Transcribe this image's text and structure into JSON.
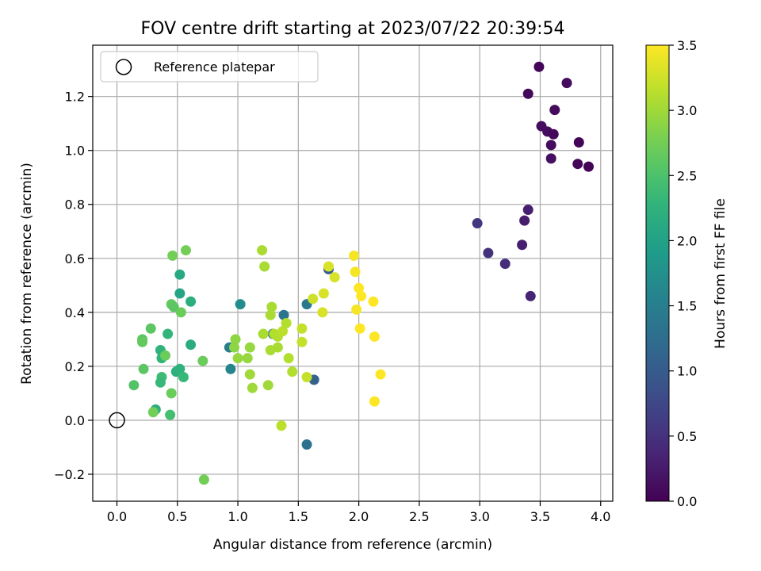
{
  "chart_data": {
    "type": "scatter",
    "title": "FOV centre drift starting at 2023/07/22 20:39:54",
    "xlabel": "Angular distance from reference (arcmin)",
    "ylabel": "Rotation from reference (arcmin)",
    "xlim": [
      -0.2,
      4.1
    ],
    "ylim": [
      -0.3,
      1.39
    ],
    "xticks": [
      0.0,
      0.5,
      1.0,
      1.5,
      2.0,
      2.5,
      3.0,
      3.5,
      4.0
    ],
    "xtick_labels": [
      "0.0",
      "0.5",
      "1.0",
      "1.5",
      "2.0",
      "2.5",
      "3.0",
      "3.5",
      "4.0"
    ],
    "yticks": [
      -0.2,
      0.0,
      0.2,
      0.4,
      0.6,
      0.8,
      1.0,
      1.2
    ],
    "ytick_labels": [
      "−0.2",
      "0.0",
      "0.2",
      "0.4",
      "0.6",
      "0.8",
      "1.0",
      "1.2"
    ],
    "grid": true,
    "legend": {
      "placement": "top-left",
      "entries": [
        "Reference platepar"
      ]
    },
    "reference_point": {
      "x": 0.0,
      "y": 0.0
    },
    "colorbar": {
      "label": "Hours from first FF file",
      "colormap": "viridis",
      "range": [
        0.0,
        3.5
      ],
      "ticks": [
        0.0,
        0.5,
        1.0,
        1.5,
        2.0,
        2.5,
        3.0,
        3.5
      ],
      "tick_labels": [
        "0.0",
        "0.5",
        "1.0",
        "1.5",
        "2.0",
        "2.5",
        "3.0",
        "3.5"
      ]
    },
    "points": [
      {
        "x": 3.49,
        "y": 1.31,
        "t": 0.05
      },
      {
        "x": 3.72,
        "y": 1.25,
        "t": 0.1
      },
      {
        "x": 3.4,
        "y": 1.21,
        "t": 0.08
      },
      {
        "x": 3.62,
        "y": 1.15,
        "t": 0.1
      },
      {
        "x": 3.51,
        "y": 1.09,
        "t": 0.12
      },
      {
        "x": 3.56,
        "y": 1.07,
        "t": 0.1
      },
      {
        "x": 3.61,
        "y": 1.06,
        "t": 0.08
      },
      {
        "x": 3.59,
        "y": 1.02,
        "t": 0.12
      },
      {
        "x": 3.82,
        "y": 1.03,
        "t": 0.03
      },
      {
        "x": 3.59,
        "y": 0.97,
        "t": 0.15
      },
      {
        "x": 3.81,
        "y": 0.95,
        "t": 0.05
      },
      {
        "x": 3.9,
        "y": 0.94,
        "t": 0.02
      },
      {
        "x": 3.4,
        "y": 0.78,
        "t": 0.3
      },
      {
        "x": 3.37,
        "y": 0.74,
        "t": 0.28
      },
      {
        "x": 2.98,
        "y": 0.73,
        "t": 0.55
      },
      {
        "x": 3.35,
        "y": 0.65,
        "t": 0.3
      },
      {
        "x": 3.07,
        "y": 0.62,
        "t": 0.5
      },
      {
        "x": 3.21,
        "y": 0.58,
        "t": 0.45
      },
      {
        "x": 3.42,
        "y": 0.46,
        "t": 0.35
      },
      {
        "x": 1.75,
        "y": 0.56,
        "t": 1.0
      },
      {
        "x": 1.63,
        "y": 0.15,
        "t": 1.1
      },
      {
        "x": 1.57,
        "y": -0.09,
        "t": 1.3
      },
      {
        "x": 1.57,
        "y": 0.43,
        "t": 1.4
      },
      {
        "x": 1.38,
        "y": 0.39,
        "t": 1.35
      },
      {
        "x": 1.29,
        "y": 0.32,
        "t": 1.3
      },
      {
        "x": 0.93,
        "y": 0.27,
        "t": 1.5
      },
      {
        "x": 0.94,
        "y": 0.19,
        "t": 1.6
      },
      {
        "x": 1.02,
        "y": 0.43,
        "t": 1.7
      },
      {
        "x": 0.52,
        "y": 0.54,
        "t": 2.1
      },
      {
        "x": 0.52,
        "y": 0.47,
        "t": 2.05
      },
      {
        "x": 0.61,
        "y": 0.44,
        "t": 2.2
      },
      {
        "x": 0.61,
        "y": 0.28,
        "t": 2.15
      },
      {
        "x": 0.42,
        "y": 0.32,
        "t": 2.3
      },
      {
        "x": 0.36,
        "y": 0.26,
        "t": 2.25
      },
      {
        "x": 0.37,
        "y": 0.23,
        "t": 2.3
      },
      {
        "x": 0.49,
        "y": 0.18,
        "t": 2.2
      },
      {
        "x": 0.52,
        "y": 0.19,
        "t": 2.25
      },
      {
        "x": 0.55,
        "y": 0.16,
        "t": 2.35
      },
      {
        "x": 0.37,
        "y": 0.16,
        "t": 2.4
      },
      {
        "x": 0.36,
        "y": 0.14,
        "t": 2.35
      },
      {
        "x": 0.32,
        "y": 0.04,
        "t": 2.2
      },
      {
        "x": 0.44,
        "y": 0.02,
        "t": 2.45
      },
      {
        "x": 0.14,
        "y": 0.13,
        "t": 2.55
      },
      {
        "x": 0.22,
        "y": 0.19,
        "t": 2.6
      },
      {
        "x": 0.21,
        "y": 0.3,
        "t": 2.6
      },
      {
        "x": 0.21,
        "y": 0.29,
        "t": 2.65
      },
      {
        "x": 0.28,
        "y": 0.34,
        "t": 2.6
      },
      {
        "x": 0.4,
        "y": 0.24,
        "t": 2.7
      },
      {
        "x": 0.45,
        "y": 0.43,
        "t": 2.65
      },
      {
        "x": 0.47,
        "y": 0.42,
        "t": 2.6
      },
      {
        "x": 0.53,
        "y": 0.4,
        "t": 2.7
      },
      {
        "x": 0.46,
        "y": 0.61,
        "t": 2.75
      },
      {
        "x": 0.57,
        "y": 0.63,
        "t": 2.75
      },
      {
        "x": 0.3,
        "y": 0.03,
        "t": 2.75
      },
      {
        "x": 0.45,
        "y": 0.1,
        "t": 2.7
      },
      {
        "x": 0.71,
        "y": 0.22,
        "t": 2.7
      },
      {
        "x": 0.72,
        "y": -0.22,
        "t": 2.75
      },
      {
        "x": 0.98,
        "y": 0.3,
        "t": 2.9
      },
      {
        "x": 0.97,
        "y": 0.27,
        "t": 2.9
      },
      {
        "x": 1.0,
        "y": 0.23,
        "t": 2.95
      },
      {
        "x": 1.08,
        "y": 0.23,
        "t": 2.95
      },
      {
        "x": 1.1,
        "y": 0.27,
        "t": 2.95
      },
      {
        "x": 1.1,
        "y": 0.17,
        "t": 3.0
      },
      {
        "x": 1.12,
        "y": 0.12,
        "t": 3.0
      },
      {
        "x": 1.2,
        "y": 0.63,
        "t": 3.05
      },
      {
        "x": 1.22,
        "y": 0.57,
        "t": 3.05
      },
      {
        "x": 1.21,
        "y": 0.32,
        "t": 3.05
      },
      {
        "x": 1.27,
        "y": 0.39,
        "t": 3.05
      },
      {
        "x": 1.28,
        "y": 0.42,
        "t": 3.05
      },
      {
        "x": 1.3,
        "y": 0.32,
        "t": 3.1
      },
      {
        "x": 1.33,
        "y": 0.27,
        "t": 3.05
      },
      {
        "x": 1.33,
        "y": 0.31,
        "t": 3.1
      },
      {
        "x": 1.27,
        "y": 0.26,
        "t": 3.05
      },
      {
        "x": 1.25,
        "y": 0.13,
        "t": 3.0
      },
      {
        "x": 1.37,
        "y": 0.33,
        "t": 3.15
      },
      {
        "x": 1.4,
        "y": 0.36,
        "t": 3.1
      },
      {
        "x": 1.42,
        "y": 0.23,
        "t": 3.1
      },
      {
        "x": 1.45,
        "y": 0.18,
        "t": 3.1
      },
      {
        "x": 1.36,
        "y": -0.02,
        "t": 3.15
      },
      {
        "x": 1.53,
        "y": 0.34,
        "t": 3.2
      },
      {
        "x": 1.53,
        "y": 0.29,
        "t": 3.2
      },
      {
        "x": 1.57,
        "y": 0.16,
        "t": 3.2
      },
      {
        "x": 1.62,
        "y": 0.45,
        "t": 3.25
      },
      {
        "x": 1.7,
        "y": 0.4,
        "t": 3.3
      },
      {
        "x": 1.71,
        "y": 0.47,
        "t": 3.3
      },
      {
        "x": 1.75,
        "y": 0.57,
        "t": 3.3
      },
      {
        "x": 1.8,
        "y": 0.53,
        "t": 3.3
      },
      {
        "x": 1.96,
        "y": 0.61,
        "t": 3.45
      },
      {
        "x": 1.97,
        "y": 0.55,
        "t": 3.45
      },
      {
        "x": 1.98,
        "y": 0.41,
        "t": 3.45
      },
      {
        "x": 2.0,
        "y": 0.49,
        "t": 3.5
      },
      {
        "x": 2.02,
        "y": 0.46,
        "t": 3.5
      },
      {
        "x": 2.01,
        "y": 0.34,
        "t": 3.5
      },
      {
        "x": 2.12,
        "y": 0.44,
        "t": 3.5
      },
      {
        "x": 2.13,
        "y": 0.31,
        "t": 3.5
      },
      {
        "x": 2.13,
        "y": 0.07,
        "t": 3.5
      },
      {
        "x": 2.18,
        "y": 0.17,
        "t": 3.5
      }
    ]
  }
}
